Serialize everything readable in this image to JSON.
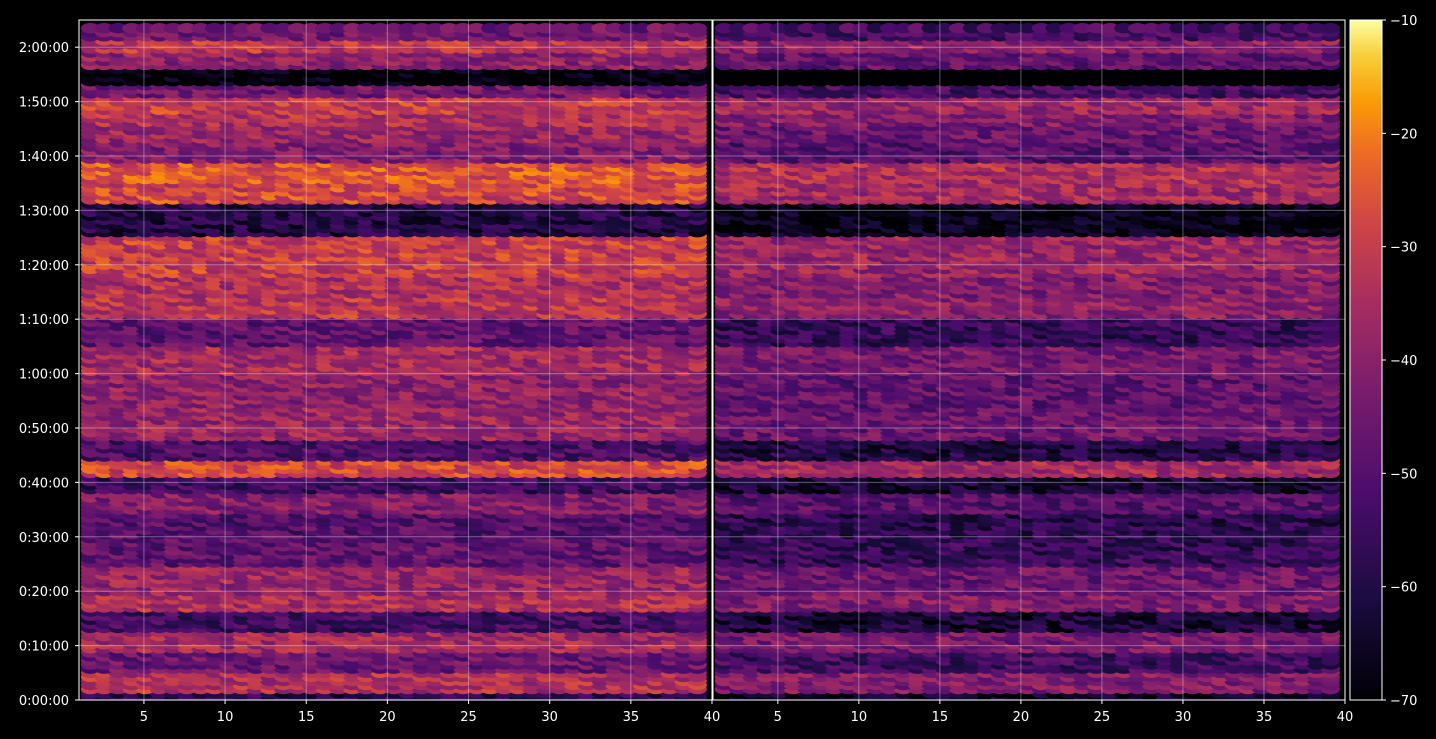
{
  "chart_data": {
    "type": "heatmap",
    "title": "",
    "xlabel": "",
    "ylabel": "",
    "panels": [
      {
        "name": "",
        "xlim": [
          1,
          40
        ],
        "x_ticks": [
          5,
          10,
          15,
          20,
          25,
          30,
          35,
          40
        ]
      },
      {
        "name": "",
        "xlim": [
          1,
          40
        ],
        "x_ticks": [
          5,
          10,
          15,
          20,
          25,
          30,
          35,
          40
        ]
      }
    ],
    "x_tick_labels": [
      "5",
      "10",
      "15",
      "20",
      "25",
      "30",
      "35",
      "40"
    ],
    "y_range_seconds": [
      0,
      7500
    ],
    "y_ticks_seconds": [
      0,
      600,
      1200,
      1800,
      2400,
      3000,
      3600,
      4200,
      4800,
      5400,
      6000,
      6600,
      7200
    ],
    "y_tick_labels": [
      "0:00:00",
      "0:10:00",
      "0:20:00",
      "0:30:00",
      "0:40:00",
      "0:50:00",
      "1:00:00",
      "1:10:00",
      "1:20:00",
      "1:30:00",
      "1:40:00",
      "1:50:00",
      "2:00:00"
    ],
    "colorbar": {
      "colormap": "inferno",
      "range": [
        -70,
        -10
      ],
      "ticks": [
        -10,
        -20,
        -30,
        -40,
        -50,
        -60,
        -70
      ],
      "tick_labels": [
        "−10",
        "−20",
        "−30",
        "−40",
        "−50",
        "−60",
        "−70"
      ]
    },
    "grid": true,
    "band_level_profile": [
      {
        "t": 7350,
        "level": -45
      },
      {
        "t": 7230,
        "level": -32
      },
      {
        "t": 7080,
        "level": -40
      },
      {
        "t": 6900,
        "level": -70
      },
      {
        "t": 6700,
        "level": -45
      },
      {
        "t": 6600,
        "level": -30
      },
      {
        "t": 6420,
        "level": -34
      },
      {
        "t": 6270,
        "level": -38
      },
      {
        "t": 6060,
        "level": -42
      },
      {
        "t": 5850,
        "level": -26
      },
      {
        "t": 5580,
        "level": -28
      },
      {
        "t": 5400,
        "level": -60
      },
      {
        "t": 4850,
        "level": -30
      },
      {
        "t": 4550,
        "level": -34
      },
      {
        "t": 4350,
        "level": -32
      },
      {
        "t": 4130,
        "level": -48
      },
      {
        "t": 3730,
        "level": -36
      },
      {
        "t": 3480,
        "level": -40
      },
      {
        "t": 3050,
        "level": -38
      },
      {
        "t": 2720,
        "level": -52
      },
      {
        "t": 2580,
        "level": -28
      },
      {
        "t": 2420,
        "level": -55
      },
      {
        "t": 2200,
        "level": -42
      },
      {
        "t": 1920,
        "level": -50
      },
      {
        "t": 1700,
        "level": -48
      },
      {
        "t": 1280,
        "level": -38
      },
      {
        "t": 1100,
        "level": -34
      },
      {
        "t": 920,
        "level": -54
      },
      {
        "t": 620,
        "level": -36
      },
      {
        "t": 470,
        "level": -46
      },
      {
        "t": 160,
        "level": -34
      },
      {
        "t": 40,
        "level": -58
      }
    ]
  }
}
